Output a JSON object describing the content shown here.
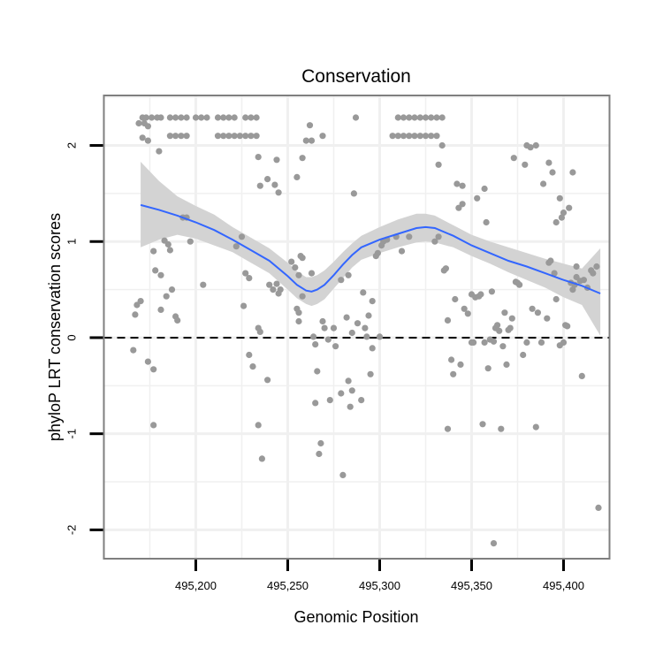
{
  "chart_data": {
    "type": "scatter",
    "title": "Conservation",
    "xlabel": "Genomic Position",
    "ylabel": "phyloP LRT conservation scores",
    "xlim": [
      495150,
      495425
    ],
    "ylim": [
      -2.3,
      2.52
    ],
    "x_ticks": [
      495200,
      495250,
      495300,
      495350,
      495400
    ],
    "x_tick_labels": [
      "495,200",
      "495,250",
      "495,300",
      "495,350",
      "495,400"
    ],
    "y_ticks": [
      -2,
      -1,
      0,
      1,
      2
    ],
    "y_tick_labels": [
      "-2",
      "-1",
      "0",
      "1",
      "2"
    ],
    "reference_line": 0,
    "grid": true,
    "colors": {
      "points": "#999999",
      "smooth_line": "#3366ff",
      "ribbon": "#d3d3d3",
      "grid": "#f0f0f0",
      "panel_border": "#7f7f7f"
    },
    "points": [
      [
        495171,
        2.29
      ],
      [
        495173,
        2.29
      ],
      [
        495176,
        2.29
      ],
      [
        495179,
        2.29
      ],
      [
        495181,
        2.29
      ],
      [
        495186,
        2.29
      ],
      [
        495189,
        2.29
      ],
      [
        495192,
        2.29
      ],
      [
        495195,
        2.29
      ],
      [
        495186,
        2.1
      ],
      [
        495189,
        2.1
      ],
      [
        495192,
        2.1
      ],
      [
        495195,
        2.1
      ],
      [
        495200,
        2.29
      ],
      [
        495203,
        2.29
      ],
      [
        495206,
        2.29
      ],
      [
        495212,
        2.29
      ],
      [
        495215,
        2.29
      ],
      [
        495218,
        2.29
      ],
      [
        495221,
        2.29
      ],
      [
        495227,
        2.29
      ],
      [
        495230,
        2.29
      ],
      [
        495233,
        2.29
      ],
      [
        495212,
        2.1
      ],
      [
        495215,
        2.1
      ],
      [
        495218,
        2.1
      ],
      [
        495221,
        2.1
      ],
      [
        495224,
        2.1
      ],
      [
        495227,
        2.1
      ],
      [
        495230,
        2.1
      ],
      [
        495233,
        2.1
      ],
      [
        495169,
        2.23
      ],
      [
        495172,
        2.23
      ],
      [
        495174,
        2.2
      ],
      [
        495171,
        2.08
      ],
      [
        495174,
        2.05
      ],
      [
        495180,
        1.94
      ],
      [
        495260,
        2.05
      ],
      [
        495263,
        2.05
      ],
      [
        495262,
        2.21
      ],
      [
        495269,
        2.1
      ],
      [
        495258,
        1.87
      ],
      [
        495255,
        1.67
      ],
      [
        495243,
        1.59
      ],
      [
        495245,
        1.51
      ],
      [
        495244,
        1.85
      ],
      [
        495239,
        1.65
      ],
      [
        495234,
        1.88
      ],
      [
        495235,
        1.58
      ],
      [
        495287,
        2.29
      ],
      [
        495310,
        2.29
      ],
      [
        495313,
        2.29
      ],
      [
        495316,
        2.29
      ],
      [
        495319,
        2.29
      ],
      [
        495322,
        2.29
      ],
      [
        495325,
        2.29
      ],
      [
        495328,
        2.29
      ],
      [
        495331,
        2.29
      ],
      [
        495334,
        2.29
      ],
      [
        495307,
        2.1
      ],
      [
        495310,
        2.1
      ],
      [
        495313,
        2.1
      ],
      [
        495316,
        2.1
      ],
      [
        495319,
        2.1
      ],
      [
        495322,
        2.1
      ],
      [
        495325,
        2.1
      ],
      [
        495328,
        2.1
      ],
      [
        495331,
        2.1
      ],
      [
        495332,
        1.8
      ],
      [
        495334,
        2.0
      ],
      [
        495342,
        1.6
      ],
      [
        495345,
        1.58
      ],
      [
        495345,
        1.39
      ],
      [
        495343,
        1.35
      ],
      [
        495353,
        1.45
      ],
      [
        495357,
        1.55
      ],
      [
        495358,
        1.2
      ],
      [
        495373,
        1.87
      ],
      [
        495379,
        1.8
      ],
      [
        495380,
        2.0
      ],
      [
        495382,
        1.98
      ],
      [
        495385,
        2.0
      ],
      [
        495389,
        1.6
      ],
      [
        495392,
        1.82
      ],
      [
        495394,
        1.72
      ],
      [
        495396,
        1.2
      ],
      [
        495398,
        1.45
      ],
      [
        495400,
        1.3
      ],
      [
        495399,
        1.25
      ],
      [
        495403,
        1.35
      ],
      [
        495405,
        1.72
      ],
      [
        495407,
        0.74
      ],
      [
        495166,
        -0.13
      ],
      [
        495168,
        0.34
      ],
      [
        495167,
        0.24
      ],
      [
        495170,
        0.38
      ],
      [
        495174,
        -0.25
      ],
      [
        495177,
        -0.33
      ],
      [
        495177,
        -0.91
      ],
      [
        495177,
        0.9
      ],
      [
        495178,
        0.7
      ],
      [
        495181,
        0.29
      ],
      [
        495181,
        0.65
      ],
      [
        495183,
        1.01
      ],
      [
        495185,
        0.97
      ],
      [
        495184,
        0.43
      ],
      [
        495186,
        0.91
      ],
      [
        495187,
        0.5
      ],
      [
        495189,
        0.22
      ],
      [
        495190,
        0.18
      ],
      [
        495193,
        1.25
      ],
      [
        495195,
        1.25
      ],
      [
        495197,
        1.0
      ],
      [
        495204,
        0.55
      ],
      [
        495225,
        1.05
      ],
      [
        495222,
        0.95
      ],
      [
        495226,
        0.33
      ],
      [
        495227,
        0.67
      ],
      [
        495229,
        0.62
      ],
      [
        495229,
        -0.18
      ],
      [
        495231,
        -0.3
      ],
      [
        495234,
        0.1
      ],
      [
        495235,
        0.06
      ],
      [
        495234,
        -0.91
      ],
      [
        495236,
        -1.26
      ],
      [
        495239,
        -0.44
      ],
      [
        495240,
        0.55
      ],
      [
        495242,
        0.5
      ],
      [
        495244,
        0.56
      ],
      [
        495246,
        0.5
      ],
      [
        495245,
        0.46
      ],
      [
        495252,
        0.79
      ],
      [
        495254,
        0.73
      ],
      [
        495256,
        0.65
      ],
      [
        495258,
        0.43
      ],
      [
        495255,
        0.3
      ],
      [
        495256,
        0.26
      ],
      [
        495256,
        0.17
      ],
      [
        495257,
        0.85
      ],
      [
        495258,
        0.83
      ],
      [
        495263,
        0.67
      ],
      [
        495264,
        0.01
      ],
      [
        495265,
        -0.07
      ],
      [
        495265,
        -0.68
      ],
      [
        495266,
        -0.35
      ],
      [
        495267,
        -1.21
      ],
      [
        495268,
        -1.1
      ],
      [
        495269,
        0.17
      ],
      [
        495270,
        0.1
      ],
      [
        495272,
        -0.02
      ],
      [
        495273,
        -0.65
      ],
      [
        495275,
        0.1
      ],
      [
        495276,
        -0.09
      ],
      [
        495279,
        0.6
      ],
      [
        495279,
        -0.58
      ],
      [
        495280,
        -1.43
      ],
      [
        495282,
        0.21
      ],
      [
        495283,
        0.65
      ],
      [
        495283,
        -0.45
      ],
      [
        495284,
        -0.72
      ],
      [
        495285,
        0.05
      ],
      [
        495285,
        -0.55
      ],
      [
        495286,
        1.5
      ],
      [
        495288,
        0.15
      ],
      [
        495290,
        -0.65
      ],
      [
        495291,
        0.47
      ],
      [
        495292,
        0.1
      ],
      [
        495293,
        0.01
      ],
      [
        495294,
        0.23
      ],
      [
        495295,
        -0.38
      ],
      [
        495296,
        0.38
      ],
      [
        495296,
        -0.11
      ],
      [
        495298,
        0.85
      ],
      [
        495299,
        0.88
      ],
      [
        495300,
        0.01
      ],
      [
        495301,
        0.96
      ],
      [
        495302,
        1.0
      ],
      [
        495304,
        1.02
      ],
      [
        495309,
        1.05
      ],
      [
        495312,
        0.9
      ],
      [
        495316,
        1.05
      ],
      [
        495330,
        1.0
      ],
      [
        495332,
        1.05
      ],
      [
        495335,
        0.7
      ],
      [
        495336,
        0.72
      ],
      [
        495337,
        0.18
      ],
      [
        495337,
        -0.95
      ],
      [
        495339,
        -0.23
      ],
      [
        495340,
        -0.38
      ],
      [
        495341,
        0.4
      ],
      [
        495344,
        -0.28
      ],
      [
        495346,
        0.3
      ],
      [
        495348,
        0.25
      ],
      [
        495350,
        0.45
      ],
      [
        495350,
        -0.05
      ],
      [
        495351,
        -0.05
      ],
      [
        495352,
        0.42
      ],
      [
        495354,
        0.43
      ],
      [
        495355,
        0.45
      ],
      [
        495356,
        -0.9
      ],
      [
        495357,
        -0.05
      ],
      [
        495359,
        -0.32
      ],
      [
        495360,
        -0.02
      ],
      [
        495361,
        0.48
      ],
      [
        495362,
        -2.14
      ],
      [
        495362,
        -0.04
      ],
      [
        495363,
        0.1
      ],
      [
        495364,
        0.13
      ],
      [
        495365,
        0.07
      ],
      [
        495366,
        -0.95
      ],
      [
        495367,
        -0.09
      ],
      [
        495368,
        0.26
      ],
      [
        495369,
        -0.28
      ],
      [
        495370,
        0.08
      ],
      [
        495371,
        0.1
      ],
      [
        495372,
        0.2
      ],
      [
        495374,
        0.58
      ],
      [
        495375,
        0.57
      ],
      [
        495376,
        0.55
      ],
      [
        495378,
        -0.18
      ],
      [
        495380,
        -0.05
      ],
      [
        495383,
        0.3
      ],
      [
        495385,
        -0.93
      ],
      [
        495386,
        0.26
      ],
      [
        495388,
        -0.05
      ],
      [
        495391,
        0.2
      ],
      [
        495392,
        0.78
      ],
      [
        495393,
        0.8
      ],
      [
        495395,
        0.67
      ],
      [
        495396,
        0.4
      ],
      [
        495398,
        -0.08
      ],
      [
        495400,
        -0.05
      ],
      [
        495401,
        0.13
      ],
      [
        495402,
        0.12
      ],
      [
        495404,
        0.57
      ],
      [
        495405,
        0.5
      ],
      [
        495406,
        0.55
      ],
      [
        495407,
        0.63
      ],
      [
        495409,
        0.59
      ],
      [
        495410,
        -0.4
      ],
      [
        495411,
        0.6
      ],
      [
        495413,
        0.52
      ],
      [
        495415,
        0.7
      ],
      [
        495416,
        0.67
      ],
      [
        495418,
        0.74
      ],
      [
        495419,
        -1.77
      ]
    ],
    "smooth_line": {
      "x": [
        495170,
        495180,
        495190,
        495200,
        495210,
        495220,
        495230,
        495240,
        495250,
        495255,
        495260,
        495263,
        495266,
        495270,
        495275,
        495280,
        495285,
        495290,
        495300,
        495310,
        495320,
        495325,
        495330,
        495340,
        495350,
        495360,
        495370,
        495380,
        495390,
        495400,
        495410,
        495420
      ],
      "y": [
        1.38,
        1.33,
        1.27,
        1.2,
        1.12,
        1.02,
        0.91,
        0.8,
        0.64,
        0.55,
        0.49,
        0.48,
        0.5,
        0.55,
        0.65,
        0.76,
        0.86,
        0.94,
        1.02,
        1.08,
        1.14,
        1.15,
        1.14,
        1.06,
        0.96,
        0.88,
        0.8,
        0.74,
        0.67,
        0.6,
        0.54,
        0.46
      ]
    },
    "ribbon": {
      "upper": [
        1.83,
        1.63,
        1.47,
        1.37,
        1.28,
        1.15,
        1.04,
        0.93,
        0.78,
        0.69,
        0.63,
        0.63,
        0.65,
        0.7,
        0.79,
        0.89,
        0.98,
        1.06,
        1.15,
        1.23,
        1.29,
        1.29,
        1.27,
        1.17,
        1.07,
        1.0,
        0.94,
        0.88,
        0.82,
        0.77,
        0.72,
        0.93
      ],
      "lower": [
        0.94,
        1.02,
        1.07,
        1.03,
        0.96,
        0.89,
        0.78,
        0.67,
        0.5,
        0.41,
        0.35,
        0.33,
        0.35,
        0.4,
        0.51,
        0.62,
        0.73,
        0.81,
        0.88,
        0.94,
        0.99,
        1.0,
        0.99,
        0.94,
        0.85,
        0.77,
        0.68,
        0.6,
        0.52,
        0.42,
        0.34,
        0.02
      ]
    }
  }
}
